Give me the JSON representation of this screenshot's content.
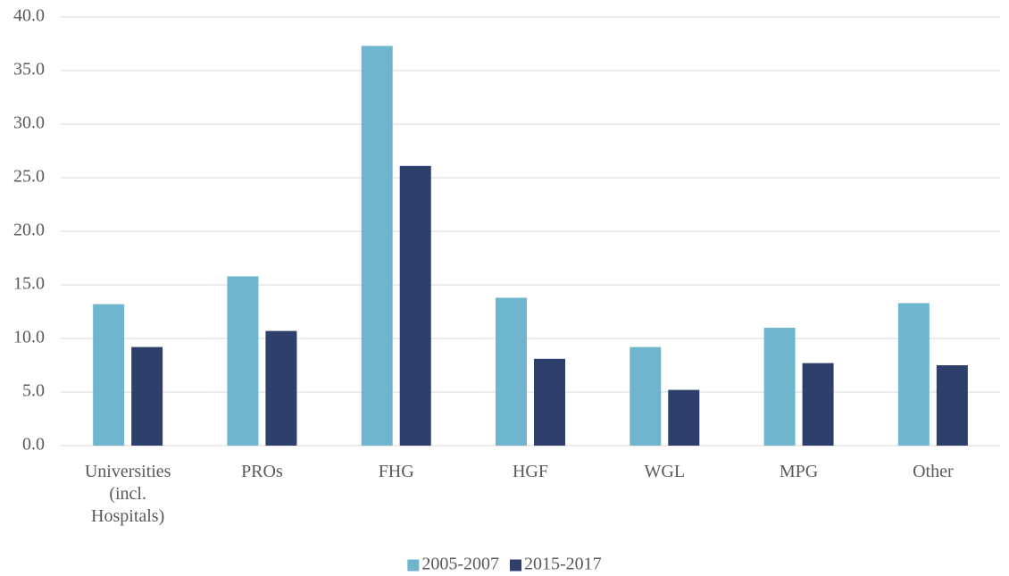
{
  "chart_data": {
    "type": "bar",
    "categories": [
      "Universities (incl. Hospitals)",
      "PROs",
      "FHG",
      "HGF",
      "WGL",
      "MPG",
      "Other"
    ],
    "series": [
      {
        "name": "2005-2007",
        "color": "#70b5ce",
        "values": [
          13.2,
          15.8,
          37.3,
          13.8,
          9.2,
          11.0,
          13.3
        ]
      },
      {
        "name": "2015-2017",
        "color": "#2e3f6b",
        "values": [
          9.2,
          10.7,
          26.1,
          8.1,
          5.2,
          7.7,
          7.5
        ]
      }
    ],
    "ylim": [
      0,
      40
    ],
    "yticks": [
      {
        "value": 0,
        "label": "0.0"
      },
      {
        "value": 5,
        "label": "5.0"
      },
      {
        "value": 10,
        "label": "10.0"
      },
      {
        "value": 15,
        "label": "15.0"
      },
      {
        "value": 20,
        "label": "20.0"
      },
      {
        "value": 25,
        "label": "25.0"
      },
      {
        "value": 30,
        "label": "30.0"
      },
      {
        "value": 35,
        "label": "35.0"
      },
      {
        "value": 40,
        "label": "40.0"
      }
    ],
    "grid": true,
    "legend": "bottom"
  }
}
